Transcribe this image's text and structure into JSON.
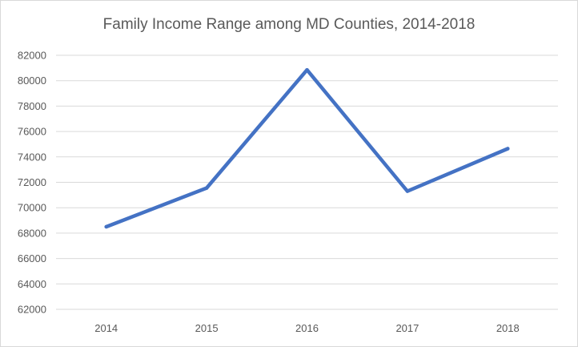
{
  "chart_data": {
    "type": "line",
    "title": "Family Income Range among MD Counties, 2014-2018",
    "xlabel": "",
    "ylabel": "",
    "categories": [
      "2014",
      "2015",
      "2016",
      "2017",
      "2018"
    ],
    "series": [
      {
        "values": [
          68500,
          71550,
          80850,
          71300,
          74650
        ],
        "color": "#4472c4"
      }
    ],
    "ylim": [
      62000,
      82000
    ],
    "yticks": [
      "62000",
      "64000",
      "66000",
      "68000",
      "70000",
      "72000",
      "74000",
      "76000",
      "78000",
      "80000",
      "82000"
    ],
    "grid": true,
    "legend": "none",
    "colors": {
      "line": "#4472c4",
      "grid": "#d9d9d9",
      "text": "#595959"
    }
  }
}
